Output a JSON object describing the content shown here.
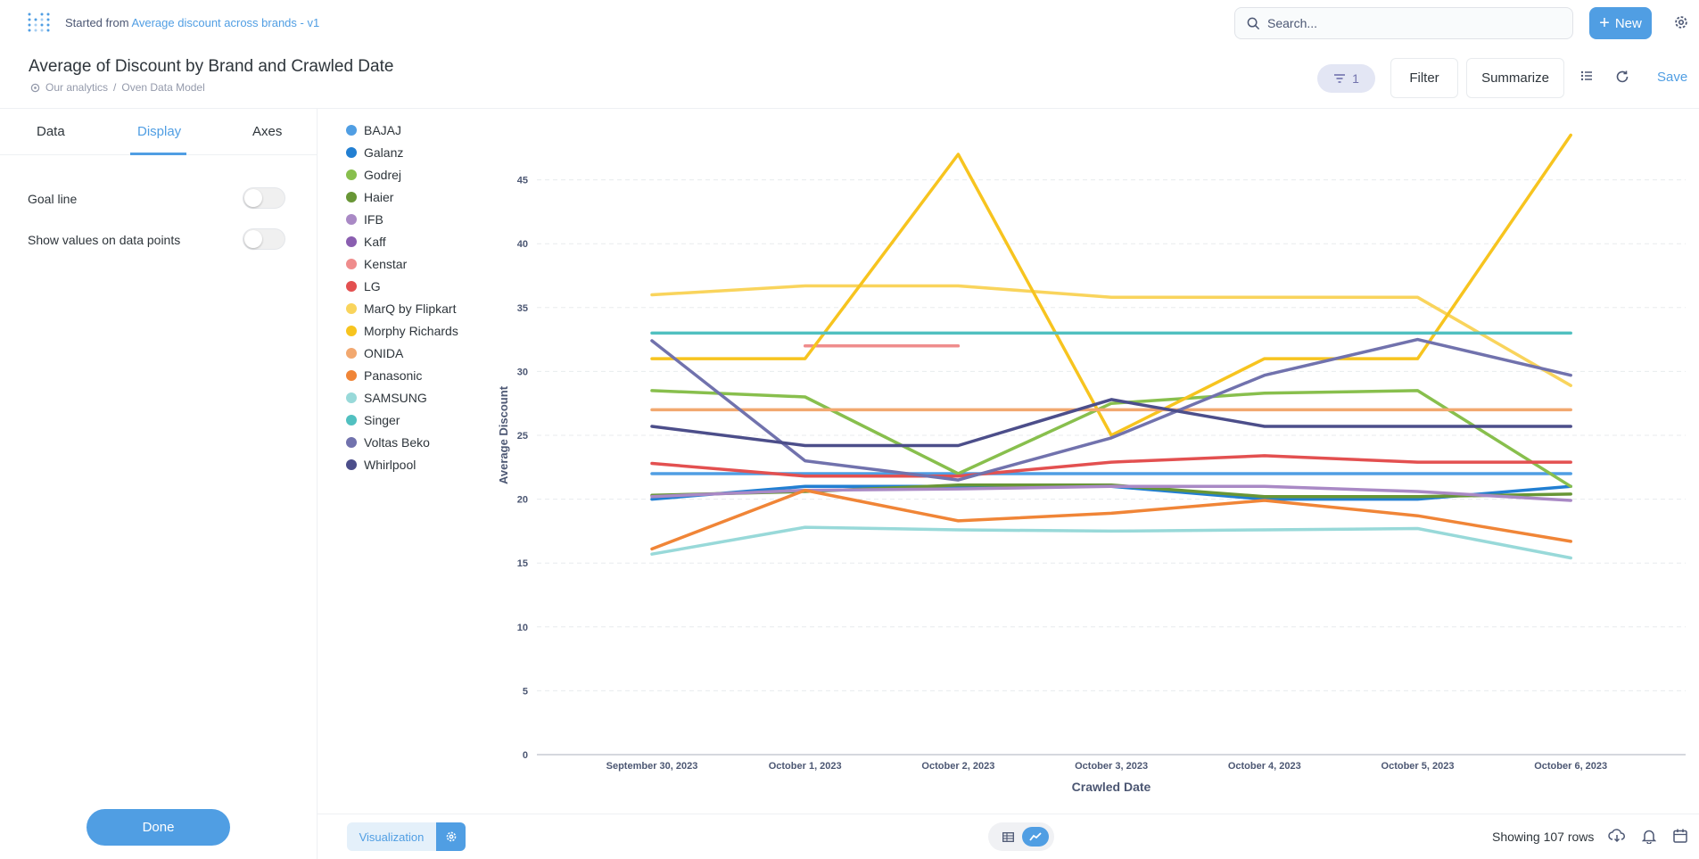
{
  "topbar": {
    "started_prefix": "Started from",
    "started_link": "Average discount across brands - v1",
    "search_placeholder": "Search...",
    "new_label": "New"
  },
  "header": {
    "title": "Average of Discount by Brand and Crawled Date",
    "breadcrumb": [
      "Our analytics",
      "/",
      "Oven Data Model"
    ],
    "filter_count": "1",
    "filter_label": "Filter",
    "summarize_label": "Summarize",
    "save_label": "Save"
  },
  "sidebar": {
    "tabs": [
      "Data",
      "Display",
      "Axes"
    ],
    "active_tab": "Display",
    "settings": [
      {
        "label": "Goal line",
        "enabled": false
      },
      {
        "label": "Show values on data points",
        "enabled": false
      }
    ],
    "done_label": "Done"
  },
  "footer": {
    "visualization_label": "Visualization",
    "rows_label": "Showing 107 rows"
  },
  "chart_data": {
    "type": "line",
    "xlabel": "Crawled Date",
    "ylabel": "Average Discount",
    "categories": [
      "September 30, 2023",
      "October 1, 2023",
      "October 2, 2023",
      "October 3, 2023",
      "October 4, 2023",
      "October 5, 2023",
      "October 6, 2023"
    ],
    "ylim": [
      0,
      50
    ],
    "yticks": [
      0,
      5,
      10,
      15,
      20,
      25,
      30,
      35,
      40,
      45
    ],
    "grid": true,
    "legend_position": "left",
    "series": [
      {
        "name": "BAJAJ",
        "color": "#509EE3",
        "values": [
          22,
          22,
          22,
          22,
          22,
          22,
          22
        ]
      },
      {
        "name": "Galanz",
        "color": "#227FD2",
        "values": [
          20,
          21,
          21,
          21,
          20,
          20,
          21
        ]
      },
      {
        "name": "Godrej",
        "color": "#88BF4D",
        "values": [
          28.5,
          28,
          22,
          27.5,
          28.3,
          28.5,
          21
        ]
      },
      {
        "name": "Haier",
        "color": "#689636",
        "values": [
          20.3,
          20.6,
          21.1,
          21.1,
          20.2,
          20.2,
          20.4
        ]
      },
      {
        "name": "IFB",
        "color": "#A989C5",
        "values": [
          20.2,
          20.7,
          20.8,
          21,
          21,
          20.6,
          19.9
        ]
      },
      {
        "name": "Kaff",
        "color": "#8A5EB0",
        "values": [
          null,
          null,
          null,
          null,
          null,
          null,
          null
        ]
      },
      {
        "name": "Kenstar",
        "color": "#EF8C8C",
        "values": [
          null,
          32,
          32,
          null,
          null,
          null,
          null
        ]
      },
      {
        "name": "LG",
        "color": "#E35050",
        "values": [
          22.8,
          21.8,
          21.8,
          22.9,
          23.4,
          22.9,
          22.9
        ]
      },
      {
        "name": "MarQ by Flipkart",
        "color": "#F9D45C",
        "values": [
          36,
          36.7,
          36.7,
          35.8,
          35.8,
          35.8,
          28.9
        ]
      },
      {
        "name": "Morphy Richards",
        "color": "#F7C41F",
        "values": [
          31,
          31,
          47,
          25,
          31,
          31,
          48.5
        ]
      },
      {
        "name": "ONIDA",
        "color": "#F2A86F",
        "values": [
          27,
          27,
          27,
          27,
          27,
          27,
          27
        ]
      },
      {
        "name": "Panasonic",
        "color": "#F08537",
        "values": [
          16.1,
          20.7,
          18.3,
          18.9,
          19.9,
          18.7,
          16.7
        ]
      },
      {
        "name": "SAMSUNG",
        "color": "#98D9D9",
        "values": [
          15.7,
          17.8,
          17.6,
          17.5,
          17.6,
          17.7,
          15.4
        ]
      },
      {
        "name": "Singer",
        "color": "#51C0C0",
        "values": [
          33,
          33,
          33,
          33,
          33,
          33,
          33
        ]
      },
      {
        "name": "Voltas Beko",
        "color": "#7172AD",
        "values": [
          32.4,
          23,
          21.5,
          24.8,
          29.7,
          32.5,
          29.7
        ]
      },
      {
        "name": "Whirlpool",
        "color": "#4C4E8A",
        "values": [
          25.7,
          24.2,
          24.2,
          27.8,
          25.7,
          25.7,
          25.7
        ]
      }
    ]
  }
}
